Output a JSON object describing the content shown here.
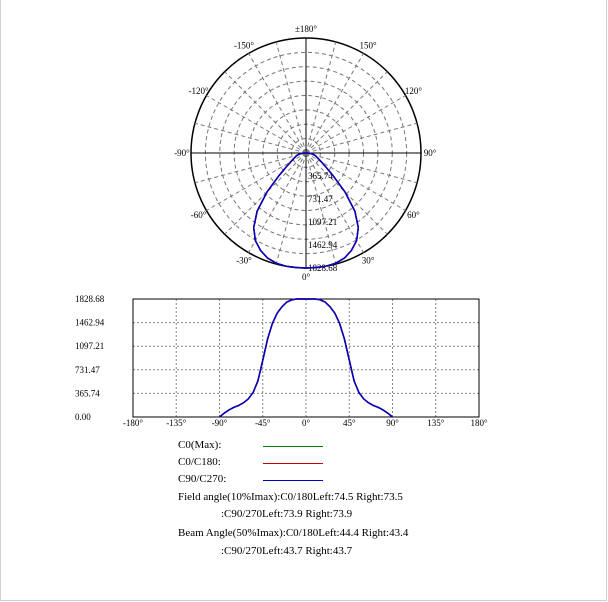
{
  "chart_data": [
    {
      "type": "polar",
      "title": "",
      "angle_labels": [
        "±180°",
        "150°",
        "120°",
        "90°",
        "60°",
        "30°",
        "0°",
        "-30°",
        "-60°",
        "-90°",
        "-120°",
        "-150°"
      ],
      "radial_ticks": [
        365.74,
        731.47,
        1097.21,
        1462.94,
        1828.68
      ],
      "radial_tick_labels": [
        "365.74",
        "731.47",
        "1097.21",
        "1462.94",
        "1828.68"
      ],
      "grid": true,
      "series": [
        {
          "name": "C0(Max)",
          "color": "#008000"
        },
        {
          "name": "C0/C180",
          "color": "#cc0000"
        },
        {
          "name": "C90/C270",
          "color": "#0000cc"
        }
      ]
    },
    {
      "type": "line",
      "title": "",
      "xlabel": "",
      "ylabel": "",
      "xlim": [
        -180,
        180
      ],
      "ylim": [
        0,
        1828.68
      ],
      "x_ticks": [
        -180,
        -135,
        -90,
        -45,
        0,
        45,
        90,
        135,
        180
      ],
      "x_tick_labels": [
        "-180°",
        "-135°",
        "-90°",
        "-45°",
        "0°",
        "45°",
        "90°",
        "135°",
        "180°"
      ],
      "y_ticks": [
        0,
        365.74,
        731.47,
        1097.21,
        1462.94,
        1828.68
      ],
      "y_tick_labels": [
        "0.00",
        "365.74",
        "731.47",
        "1097.21",
        "1462.94",
        "1828.68"
      ],
      "grid": true,
      "x": [
        -90,
        -85,
        -80,
        -75,
        -70,
        -65,
        -60,
        -55,
        -50,
        -45,
        -40,
        -35,
        -30,
        -25,
        -20,
        -15,
        -10,
        -5,
        0,
        5,
        10,
        15,
        20,
        25,
        30,
        35,
        40,
        45,
        50,
        55,
        60,
        65,
        70,
        75,
        80,
        85,
        90
      ],
      "series": [
        {
          "name": "C0(Max)",
          "color": "#008000",
          "values": [
            0,
            60,
            110,
            150,
            180,
            220,
            280,
            380,
            560,
            880,
            1210,
            1450,
            1610,
            1710,
            1780,
            1815,
            1828,
            1828,
            1828,
            1828,
            1828,
            1815,
            1780,
            1710,
            1610,
            1450,
            1210,
            880,
            560,
            380,
            280,
            220,
            180,
            150,
            110,
            60,
            0
          ]
        },
        {
          "name": "C0/C180",
          "color": "#cc0000",
          "values": [
            0,
            60,
            110,
            150,
            180,
            220,
            280,
            380,
            560,
            880,
            1210,
            1450,
            1610,
            1710,
            1780,
            1815,
            1828,
            1828,
            1828,
            1828,
            1828,
            1815,
            1780,
            1710,
            1610,
            1450,
            1210,
            880,
            560,
            380,
            280,
            220,
            180,
            150,
            110,
            60,
            0
          ]
        },
        {
          "name": "C90/C270",
          "color": "#0000cc",
          "values": [
            0,
            60,
            110,
            150,
            180,
            220,
            280,
            380,
            560,
            880,
            1210,
            1450,
            1610,
            1710,
            1780,
            1815,
            1828,
            1828,
            1828,
            1828,
            1828,
            1815,
            1780,
            1710,
            1610,
            1450,
            1210,
            880,
            560,
            380,
            280,
            220,
            180,
            150,
            110,
            60,
            0
          ]
        }
      ]
    }
  ],
  "legend": [
    {
      "label": "C0(Max):",
      "color": "#008000"
    },
    {
      "label": "C0/C180:",
      "color": "#cc0000"
    },
    {
      "label": "C90/C270:",
      "color": "#0000cc"
    }
  ],
  "info": {
    "field_c0": "Field angle(10%Imax):C0/180Left:74.5 Right:73.5",
    "field_c90": ":C90/270Left:73.9 Right:73.9",
    "beam_c0": "Beam Angle(50%Imax):C0/180Left:44.4 Right:43.4",
    "beam_c90": ":C90/270Left:43.7 Right:43.7"
  }
}
